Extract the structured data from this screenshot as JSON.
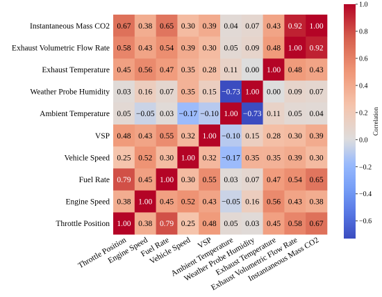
{
  "chart_data": {
    "type": "heatmap",
    "title": "",
    "rows": [
      "Instantaneous Mass CO2",
      "Exhaust Volumetric Flow Rate",
      "Exhaust Temperature",
      "Weather Probe Humidity",
      "Ambient Temperature",
      "VSP",
      "Vehicle Speed",
      "Fuel Rate",
      "Engine Speed",
      "Throttle Position"
    ],
    "columns": [
      "Throttle Position",
      "Engine Speed",
      "Fuel Rate",
      "Vehicle Speed",
      "VSP",
      "Ambient Temperature",
      "Weather Probe Humidity",
      "Exhaust Temperature",
      "Exhaust Volumetric Flow Rate",
      "Instantaneous Mass CO2"
    ],
    "values": [
      [
        0.67,
        0.38,
        0.65,
        0.3,
        0.39,
        0.04,
        0.07,
        0.43,
        0.92,
        1.0
      ],
      [
        0.58,
        0.43,
        0.54,
        0.39,
        0.3,
        0.05,
        0.09,
        0.48,
        1.0,
        0.92
      ],
      [
        0.45,
        0.56,
        0.47,
        0.35,
        0.28,
        0.11,
        0.0,
        1.0,
        0.48,
        0.43
      ],
      [
        0.03,
        0.16,
        0.07,
        0.35,
        0.15,
        -0.73,
        1.0,
        0.0,
        0.09,
        0.07
      ],
      [
        0.05,
        -0.05,
        0.03,
        -0.17,
        -0.1,
        1.0,
        -0.73,
        0.11,
        0.05,
        0.04
      ],
      [
        0.48,
        0.43,
        0.55,
        0.32,
        1.0,
        -0.1,
        0.15,
        0.28,
        0.3,
        0.39
      ],
      [
        0.25,
        0.52,
        0.3,
        1.0,
        0.32,
        -0.17,
        0.35,
        0.35,
        0.39,
        0.3
      ],
      [
        0.79,
        0.45,
        1.0,
        0.3,
        0.55,
        0.03,
        0.07,
        0.47,
        0.54,
        0.65
      ],
      [
        0.38,
        1.0,
        0.45,
        0.52,
        0.43,
        -0.05,
        0.16,
        0.56,
        0.43,
        0.38
      ],
      [
        1.0,
        0.38,
        0.79,
        0.25,
        0.48,
        0.05,
        0.03,
        0.45,
        0.58,
        0.67
      ]
    ],
    "colorbar": {
      "label": "Correlation",
      "range": [
        -0.73,
        1.0
      ],
      "ticks": [
        1.0,
        0.8,
        0.6,
        0.4,
        0.2,
        0.0,
        -0.2,
        -0.4,
        -0.6
      ],
      "tick_labels": [
        "1.0",
        "0.8",
        "0.6",
        "0.4",
        "0.2",
        "0.0",
        "−0.2",
        "−0.4",
        "−0.6"
      ],
      "colormap": "coolwarm",
      "low_color": "#3b4cc0",
      "mid_color": "#dddddd",
      "high_color": "#b40426"
    },
    "grid": false
  }
}
